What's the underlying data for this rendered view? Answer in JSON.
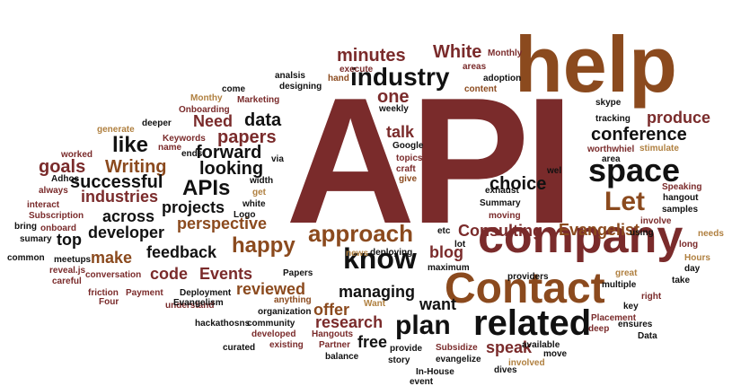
{
  "palette": {
    "maroon": "#7a2b2b",
    "brown": "#8b4a1e",
    "tan": "#b08040",
    "black": "#111111"
  },
  "words": [
    {
      "text": "API",
      "color": "maroon"
    },
    {
      "text": "help",
      "color": "brown"
    },
    {
      "text": "company",
      "color": "maroon"
    },
    {
      "text": "Contact",
      "color": "brown"
    },
    {
      "text": "know",
      "color": "black"
    },
    {
      "text": "related",
      "color": "black"
    },
    {
      "text": "space",
      "color": "black"
    },
    {
      "text": "industry",
      "color": "black"
    },
    {
      "text": "approach",
      "color": "brown"
    },
    {
      "text": "Let",
      "color": "brown"
    },
    {
      "text": "plan",
      "color": "black"
    },
    {
      "text": "like",
      "color": "black"
    },
    {
      "text": "APIs",
      "color": "black"
    },
    {
      "text": "happy",
      "color": "brown"
    },
    {
      "text": "conference",
      "color": "black"
    },
    {
      "text": "produce",
      "color": "maroon"
    },
    {
      "text": "minutes",
      "color": "maroon"
    },
    {
      "text": "White",
      "color": "maroon"
    },
    {
      "text": "choice",
      "color": "black"
    },
    {
      "text": "data",
      "color": "black"
    },
    {
      "text": "papers",
      "color": "maroon"
    },
    {
      "text": "forward",
      "color": "black"
    },
    {
      "text": "looking",
      "color": "black"
    },
    {
      "text": "Writing",
      "color": "brown"
    },
    {
      "text": "goals",
      "color": "maroon"
    },
    {
      "text": "successful",
      "color": "black"
    },
    {
      "text": "industries",
      "color": "maroon"
    },
    {
      "text": "across",
      "color": "black"
    },
    {
      "text": "developer",
      "color": "black"
    },
    {
      "text": "projects",
      "color": "black"
    },
    {
      "text": "perspective",
      "color": "brown"
    },
    {
      "text": "Evangelist",
      "color": "brown"
    },
    {
      "text": "Consulting",
      "color": "maroon"
    },
    {
      "text": "blog",
      "color": "maroon"
    },
    {
      "text": "feedback",
      "color": "black"
    },
    {
      "text": "make",
      "color": "brown"
    },
    {
      "text": "code",
      "color": "maroon"
    },
    {
      "text": "Events",
      "color": "maroon"
    },
    {
      "text": "reviewed",
      "color": "brown"
    },
    {
      "text": "managing",
      "color": "black"
    },
    {
      "text": "want",
      "color": "black"
    },
    {
      "text": "offer",
      "color": "brown"
    },
    {
      "text": "research",
      "color": "maroon"
    },
    {
      "text": "free",
      "color": "black"
    },
    {
      "text": "speak",
      "color": "maroon"
    },
    {
      "text": "talk",
      "color": "maroon"
    },
    {
      "text": "Need",
      "color": "maroon"
    },
    {
      "text": "one",
      "color": "maroon"
    },
    {
      "text": "top",
      "color": "black"
    },
    {
      "text": "Monthly",
      "color": "maroon"
    },
    {
      "text": "execute",
      "color": "maroon"
    },
    {
      "text": "areas",
      "color": "maroon"
    },
    {
      "text": "adoption",
      "color": "black"
    },
    {
      "text": "content",
      "color": "brown"
    },
    {
      "text": "analsis",
      "color": "black"
    },
    {
      "text": "designing",
      "color": "black"
    },
    {
      "text": "hand",
      "color": "brown"
    },
    {
      "text": "come",
      "color": "black"
    },
    {
      "text": "Monthy",
      "color": "tan"
    },
    {
      "text": "Marketing",
      "color": "maroon"
    },
    {
      "text": "Onboarding",
      "color": "maroon"
    },
    {
      "text": "weekly",
      "color": "black"
    },
    {
      "text": "skype",
      "color": "black"
    },
    {
      "text": "tracking",
      "color": "black"
    },
    {
      "text": "generate",
      "color": "tan"
    },
    {
      "text": "deeper",
      "color": "black"
    },
    {
      "text": "Keywords",
      "color": "maroon"
    },
    {
      "text": "name",
      "color": "maroon"
    },
    {
      "text": "ends",
      "color": "black"
    },
    {
      "text": "via",
      "color": "black"
    },
    {
      "text": "Google",
      "color": "black"
    },
    {
      "text": "topics",
      "color": "maroon"
    },
    {
      "text": "craft",
      "color": "maroon"
    },
    {
      "text": "give",
      "color": "brown"
    },
    {
      "text": "worthwhiel",
      "color": "maroon"
    },
    {
      "text": "stimulate",
      "color": "tan"
    },
    {
      "text": "area",
      "color": "black"
    },
    {
      "text": "wel",
      "color": "black"
    },
    {
      "text": "worked",
      "color": "maroon"
    },
    {
      "text": "Adhoc",
      "color": "black"
    },
    {
      "text": "always",
      "color": "maroon"
    },
    {
      "text": "width",
      "color": "black"
    },
    {
      "text": "get",
      "color": "tan"
    },
    {
      "text": "white",
      "color": "black"
    },
    {
      "text": "Logo",
      "color": "black"
    },
    {
      "text": "exhaust",
      "color": "black"
    },
    {
      "text": "Summary",
      "color": "black"
    },
    {
      "text": "moving",
      "color": "maroon"
    },
    {
      "text": "Speaking",
      "color": "maroon"
    },
    {
      "text": "hangout",
      "color": "black"
    },
    {
      "text": "samples",
      "color": "black"
    },
    {
      "text": "involve",
      "color": "maroon"
    },
    {
      "text": "using",
      "color": "black"
    },
    {
      "text": "needs",
      "color": "tan"
    },
    {
      "text": "long",
      "color": "maroon"
    },
    {
      "text": "interact",
      "color": "maroon"
    },
    {
      "text": "Subscription",
      "color": "maroon"
    },
    {
      "text": "bring",
      "color": "black"
    },
    {
      "text": "onboard",
      "color": "maroon"
    },
    {
      "text": "sumary",
      "color": "black"
    },
    {
      "text": "etc",
      "color": "black"
    },
    {
      "text": "news",
      "color": "tan"
    },
    {
      "text": "deploying",
      "color": "black"
    },
    {
      "text": "lot",
      "color": "black"
    },
    {
      "text": "Hours",
      "color": "tan"
    },
    {
      "text": "day",
      "color": "black"
    },
    {
      "text": "take",
      "color": "black"
    },
    {
      "text": "common",
      "color": "black"
    },
    {
      "text": "meetups",
      "color": "black"
    },
    {
      "text": "reveal.js",
      "color": "maroon"
    },
    {
      "text": "maximum",
      "color": "black"
    },
    {
      "text": "providers",
      "color": "black"
    },
    {
      "text": "great",
      "color": "tan"
    },
    {
      "text": "multiple",
      "color": "black"
    },
    {
      "text": "right",
      "color": "maroon"
    },
    {
      "text": "key",
      "color": "black"
    },
    {
      "text": "Papers",
      "color": "black"
    },
    {
      "text": "conversation",
      "color": "maroon"
    },
    {
      "text": "careful",
      "color": "maroon"
    },
    {
      "text": "friction",
      "color": "maroon"
    },
    {
      "text": "Payment",
      "color": "maroon"
    },
    {
      "text": "Four",
      "color": "maroon"
    },
    {
      "text": "understand",
      "color": "maroon"
    },
    {
      "text": "Deployment",
      "color": "black"
    },
    {
      "text": "Evangelism",
      "color": "black"
    },
    {
      "text": "anything",
      "color": "brown"
    },
    {
      "text": "organization",
      "color": "black"
    },
    {
      "text": "Want",
      "color": "tan"
    },
    {
      "text": "Placement",
      "color": "maroon"
    },
    {
      "text": "deep",
      "color": "maroon"
    },
    {
      "text": "ensures",
      "color": "black"
    },
    {
      "text": "hackathosns",
      "color": "black"
    },
    {
      "text": "community",
      "color": "black"
    },
    {
      "text": "developed",
      "color": "maroon"
    },
    {
      "text": "Hangouts",
      "color": "maroon"
    },
    {
      "text": "existing",
      "color": "maroon"
    },
    {
      "text": "Partner",
      "color": "maroon"
    },
    {
      "text": "curated",
      "color": "black"
    },
    {
      "text": "balance",
      "color": "black"
    },
    {
      "text": "provide",
      "color": "black"
    },
    {
      "text": "Subsidize",
      "color": "maroon"
    },
    {
      "text": "evangelize",
      "color": "black"
    },
    {
      "text": "available",
      "color": "black"
    },
    {
      "text": "move",
      "color": "black"
    },
    {
      "text": "Data",
      "color": "black"
    },
    {
      "text": "story",
      "color": "black"
    },
    {
      "text": "In-House",
      "color": "black"
    },
    {
      "text": "event",
      "color": "black"
    },
    {
      "text": "dives",
      "color": "black"
    },
    {
      "text": "involved",
      "color": "tan"
    }
  ]
}
